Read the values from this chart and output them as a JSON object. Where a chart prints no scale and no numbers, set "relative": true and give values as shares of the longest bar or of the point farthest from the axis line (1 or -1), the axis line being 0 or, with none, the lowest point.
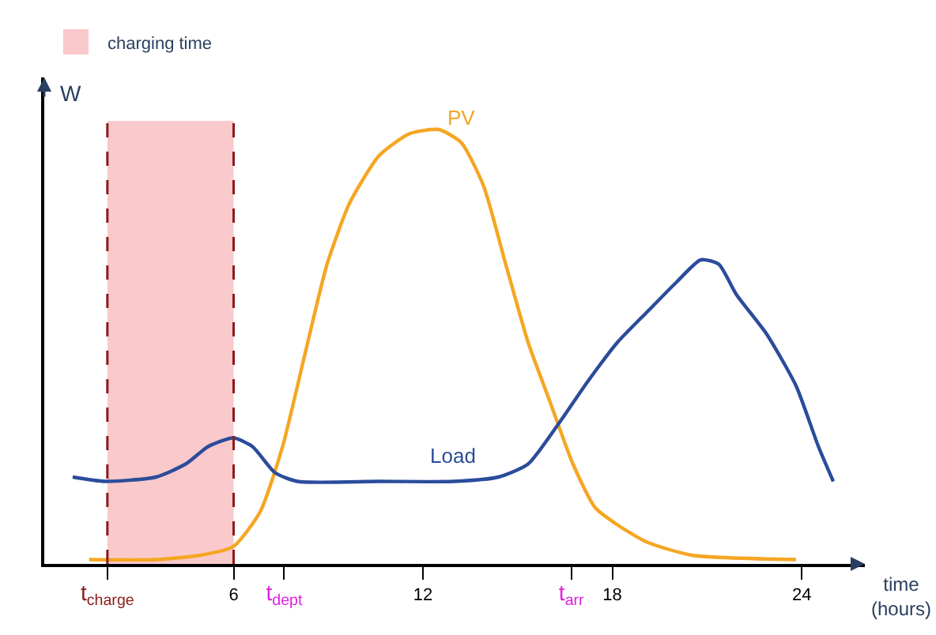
{
  "chart_data": {
    "type": "line",
    "relative": true,
    "xlabel": "time (hours)",
    "ylabel": "W",
    "xlim": [
      0,
      26
    ],
    "xticks": [
      {
        "value": 2,
        "label": "t$_{charge}$"
      },
      6,
      {
        "value": 7.6,
        "label": "t$_{dept}$"
      },
      12,
      {
        "value": 16.7,
        "label": "t$_{arr}$"
      },
      18,
      24
    ],
    "bands": [
      {
        "axis": "x",
        "from": 2,
        "to": 6,
        "label": "charging time",
        "color": "#f9c9cb"
      }
    ],
    "ref_lines": [
      {
        "axis": "x",
        "value": 2,
        "color": "#8b1a1a",
        "line_style": "dashed"
      },
      {
        "axis": "x",
        "value": 6,
        "color": "#8b1a1a",
        "line_style": "dashed"
      }
    ],
    "legend": "top left",
    "grid": false,
    "marker": "none",
    "line_style": "solid",
    "series": [
      {
        "name": "PV",
        "color": "#f5a623",
        "x": [
          1.42,
          3.54,
          4.95,
          5.99,
          6.84,
          7.55,
          8.25,
          8.96,
          9.67,
          10.61,
          11.56,
          12.5,
          13.21,
          13.92,
          14.62,
          15.33,
          16.04,
          16.75,
          17.45,
          18.16,
          19.1,
          20.52,
          23.82
        ],
        "values": [
          0.01,
          0.01,
          0.02,
          0.04,
          0.12,
          0.27,
          0.48,
          0.69,
          0.83,
          0.94,
          0.99,
          1,
          0.97,
          0.87,
          0.69,
          0.51,
          0.37,
          0.23,
          0.13,
          0.09,
          0.05,
          0.02,
          0.01
        ]
      },
      {
        "name": "Load",
        "color": "#2b4c9b",
        "x": [
          0.9,
          1.93,
          3.54,
          4.48,
          5.19,
          5.99,
          6.6,
          7.31,
          8.02,
          10.61,
          12.97,
          14.39,
          15.33,
          16.27,
          17.22,
          18.16,
          19.1,
          20.05,
          20.8,
          21.37,
          21.93,
          22.88,
          23.82,
          24.53,
          25.0
        ],
        "values": [
          0.2,
          0.19,
          0.2,
          0.23,
          0.27,
          0.29,
          0.27,
          0.21,
          0.19,
          0.19,
          0.19,
          0.2,
          0.23,
          0.32,
          0.42,
          0.51,
          0.58,
          0.65,
          0.7,
          0.69,
          0.62,
          0.53,
          0.41,
          0.27,
          0.19
        ]
      }
    ]
  }
}
